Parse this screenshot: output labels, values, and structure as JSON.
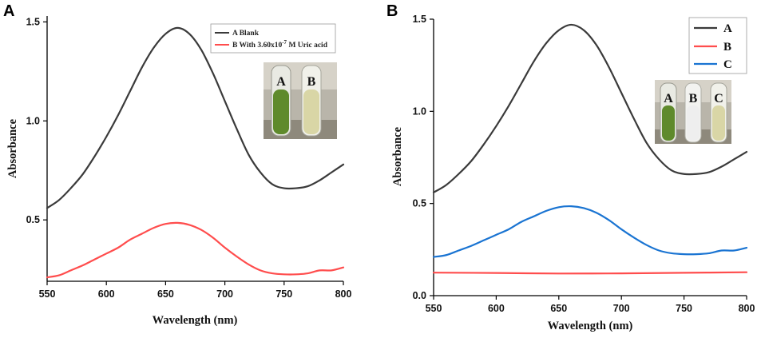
{
  "chart_data": [
    {
      "panel": "A",
      "type": "line",
      "xlabel": "Wavelength (nm)",
      "ylabel": "Absorbance",
      "xlim": [
        550,
        800
      ],
      "ylim": [
        0.19,
        1.53
      ],
      "xticks": [
        550,
        600,
        650,
        700,
        750,
        800
      ],
      "yticks": [
        0.5,
        1.0,
        1.5
      ],
      "ytick_labels": [
        "0.5",
        "1.0",
        "1.5"
      ],
      "legend_position": "top-right",
      "legend": [
        {
          "label": "A Blank",
          "color": "#3a3a3a"
        },
        {
          "label": "B With 3.60x10",
          "sup": "-7",
          "label_tail": " M Uric acid",
          "color": "#ff4d4d"
        }
      ],
      "inset": {
        "labels": [
          "A",
          "B"
        ],
        "tube_colors": [
          "#5f8a2c",
          "#d9d6a6"
        ]
      },
      "series": [
        {
          "name": "A",
          "color": "#3a3a3a",
          "x": [
            550,
            560,
            570,
            580,
            590,
            600,
            610,
            620,
            630,
            640,
            650,
            660,
            670,
            680,
            690,
            700,
            710,
            720,
            730,
            740,
            750,
            760,
            770,
            780,
            790,
            800
          ],
          "y": [
            0.56,
            0.6,
            0.66,
            0.73,
            0.82,
            0.92,
            1.03,
            1.15,
            1.27,
            1.37,
            1.44,
            1.47,
            1.44,
            1.36,
            1.24,
            1.1,
            0.96,
            0.83,
            0.74,
            0.68,
            0.66,
            0.66,
            0.67,
            0.7,
            0.74,
            0.78
          ]
        },
        {
          "name": "B",
          "color": "#ff4d4d",
          "x": [
            550,
            560,
            570,
            580,
            590,
            600,
            610,
            620,
            630,
            640,
            650,
            660,
            670,
            680,
            690,
            700,
            710,
            720,
            730,
            740,
            750,
            760,
            770,
            780,
            790,
            800
          ],
          "y": [
            0.21,
            0.22,
            0.245,
            0.27,
            0.3,
            0.33,
            0.36,
            0.4,
            0.43,
            0.46,
            0.48,
            0.485,
            0.475,
            0.45,
            0.41,
            0.36,
            0.315,
            0.275,
            0.245,
            0.23,
            0.225,
            0.225,
            0.23,
            0.245,
            0.245,
            0.26
          ]
        }
      ]
    },
    {
      "panel": "B",
      "type": "line",
      "xlabel": "Wavelength (nm)",
      "ylabel": "Absorbance",
      "xlim": [
        550,
        800
      ],
      "ylim": [
        0,
        1.5
      ],
      "xticks": [
        550,
        600,
        650,
        700,
        750,
        800
      ],
      "yticks": [
        0,
        0.5,
        1.0,
        1.5
      ],
      "ytick_labels": [
        "0.0",
        "0.5",
        "1.0",
        "1.5"
      ],
      "legend_position": "top-right",
      "legend": [
        {
          "label": "A",
          "color": "#3a3a3a"
        },
        {
          "label": "B",
          "color": "#ff4d4d"
        },
        {
          "label": "C",
          "color": "#1a74d2"
        }
      ],
      "inset": {
        "labels": [
          "A",
          "B",
          "C"
        ],
        "tube_colors": [
          "#5f8a2c",
          "#eeeeee",
          "#d9d6a6"
        ]
      },
      "series": [
        {
          "name": "A",
          "color": "#3a3a3a",
          "x": [
            550,
            560,
            570,
            580,
            590,
            600,
            610,
            620,
            630,
            640,
            650,
            660,
            670,
            680,
            690,
            700,
            710,
            720,
            730,
            740,
            750,
            760,
            770,
            780,
            790,
            800
          ],
          "y": [
            0.56,
            0.6,
            0.66,
            0.73,
            0.82,
            0.92,
            1.03,
            1.15,
            1.27,
            1.37,
            1.44,
            1.47,
            1.44,
            1.36,
            1.24,
            1.1,
            0.96,
            0.83,
            0.74,
            0.68,
            0.66,
            0.66,
            0.67,
            0.7,
            0.74,
            0.78
          ]
        },
        {
          "name": "B",
          "color": "#ff4d4d",
          "x": [
            550,
            600,
            650,
            700,
            750,
            800
          ],
          "y": [
            0.125,
            0.123,
            0.12,
            0.121,
            0.124,
            0.127
          ]
        },
        {
          "name": "C",
          "color": "#1a74d2",
          "x": [
            550,
            560,
            570,
            580,
            590,
            600,
            610,
            620,
            630,
            640,
            650,
            660,
            670,
            680,
            690,
            700,
            710,
            720,
            730,
            740,
            750,
            760,
            770,
            780,
            790,
            800
          ],
          "y": [
            0.21,
            0.22,
            0.245,
            0.27,
            0.3,
            0.33,
            0.36,
            0.4,
            0.43,
            0.46,
            0.48,
            0.485,
            0.475,
            0.45,
            0.41,
            0.36,
            0.315,
            0.275,
            0.245,
            0.23,
            0.225,
            0.225,
            0.23,
            0.245,
            0.245,
            0.26
          ]
        }
      ]
    }
  ]
}
